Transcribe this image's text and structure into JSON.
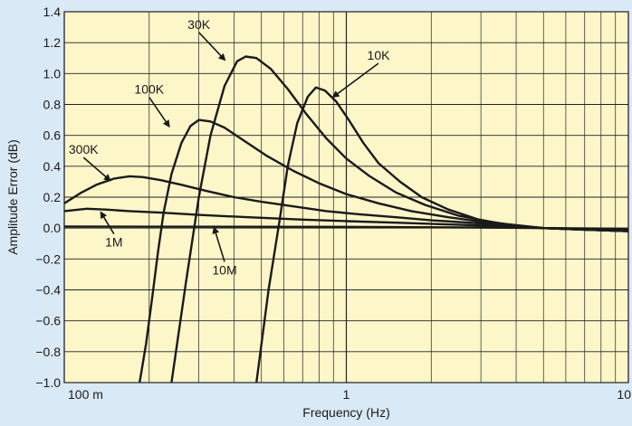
{
  "chart_data": {
    "type": "line",
    "xlabel": "Frequency (Hz)",
    "ylabel": "Amplitude Error (dB)",
    "x_scale": "log",
    "xlim": [
      0.1,
      10
    ],
    "ylim": [
      -1.0,
      1.4
    ],
    "grid": true,
    "legend": "none",
    "plot_bg": "#fdf6c9",
    "grid_color": "#222222",
    "line_color": "#1a1a1a",
    "x_ticks": [
      {
        "value": 0.1,
        "label": "100 m"
      },
      {
        "value": 1,
        "label": "1"
      },
      {
        "value": 10,
        "label": "10"
      }
    ],
    "y_ticks": [
      {
        "value": 1.4,
        "label": "1.4"
      },
      {
        "value": 1.2,
        "label": "1.2"
      },
      {
        "value": 1.0,
        "label": "1.0"
      },
      {
        "value": 0.8,
        "label": "0.8"
      },
      {
        "value": 0.6,
        "label": "0.6"
      },
      {
        "value": 0.4,
        "label": "0.4"
      },
      {
        "value": 0.2,
        "label": "0.2"
      },
      {
        "value": 0.0,
        "label": "0.0"
      },
      {
        "value": -0.2,
        "label": "−0.2"
      },
      {
        "value": -0.4,
        "label": "−0.4"
      },
      {
        "value": -0.6,
        "label": "−0.6"
      },
      {
        "value": -0.8,
        "label": "−0.8"
      },
      {
        "value": -1.0,
        "label": "−1.0"
      }
    ],
    "series": [
      {
        "name": "10K",
        "points": [
          [
            0.48,
            -1.0
          ],
          [
            0.53,
            -0.4
          ],
          [
            0.58,
            0.05
          ],
          [
            0.62,
            0.4
          ],
          [
            0.67,
            0.68
          ],
          [
            0.73,
            0.85
          ],
          [
            0.78,
            0.91
          ],
          [
            0.84,
            0.89
          ],
          [
            0.92,
            0.82
          ],
          [
            1.02,
            0.7
          ],
          [
            1.15,
            0.55
          ],
          [
            1.3,
            0.42
          ],
          [
            1.55,
            0.3
          ],
          [
            1.85,
            0.2
          ],
          [
            2.3,
            0.12
          ],
          [
            3.0,
            0.05
          ],
          [
            4.0,
            0.015
          ],
          [
            5.0,
            0.0
          ],
          [
            7.0,
            -0.01
          ],
          [
            10.0,
            -0.02
          ]
        ]
      },
      {
        "name": "30K",
        "points": [
          [
            0.24,
            -1.0
          ],
          [
            0.27,
            -0.35
          ],
          [
            0.3,
            0.2
          ],
          [
            0.33,
            0.6
          ],
          [
            0.37,
            0.92
          ],
          [
            0.41,
            1.08
          ],
          [
            0.44,
            1.11
          ],
          [
            0.48,
            1.1
          ],
          [
            0.54,
            1.03
          ],
          [
            0.62,
            0.9
          ],
          [
            0.72,
            0.74
          ],
          [
            0.85,
            0.58
          ],
          [
            1.0,
            0.45
          ],
          [
            1.2,
            0.34
          ],
          [
            1.5,
            0.23
          ],
          [
            1.9,
            0.15
          ],
          [
            2.5,
            0.08
          ],
          [
            3.5,
            0.03
          ],
          [
            5.0,
            0.0
          ],
          [
            7.0,
            -0.01
          ],
          [
            10.0,
            -0.02
          ]
        ]
      },
      {
        "name": "100K",
        "points": [
          [
            0.185,
            -1.0
          ],
          [
            0.195,
            -0.75
          ],
          [
            0.205,
            -0.45
          ],
          [
            0.215,
            -0.15
          ],
          [
            0.225,
            0.1
          ],
          [
            0.24,
            0.35
          ],
          [
            0.26,
            0.55
          ],
          [
            0.28,
            0.66
          ],
          [
            0.3,
            0.7
          ],
          [
            0.33,
            0.69
          ],
          [
            0.37,
            0.65
          ],
          [
            0.43,
            0.57
          ],
          [
            0.52,
            0.47
          ],
          [
            0.65,
            0.37
          ],
          [
            0.8,
            0.29
          ],
          [
            1.0,
            0.22
          ],
          [
            1.3,
            0.16
          ],
          [
            1.7,
            0.11
          ],
          [
            2.3,
            0.07
          ],
          [
            3.2,
            0.035
          ],
          [
            5.0,
            0.0
          ],
          [
            7.0,
            -0.01
          ],
          [
            10.0,
            -0.02
          ]
        ]
      },
      {
        "name": "300K",
        "points": [
          [
            0.1,
            0.16
          ],
          [
            0.115,
            0.23
          ],
          [
            0.13,
            0.28
          ],
          [
            0.15,
            0.32
          ],
          [
            0.17,
            0.335
          ],
          [
            0.19,
            0.33
          ],
          [
            0.22,
            0.31
          ],
          [
            0.26,
            0.28
          ],
          [
            0.32,
            0.24
          ],
          [
            0.4,
            0.2
          ],
          [
            0.5,
            0.17
          ],
          [
            0.65,
            0.14
          ],
          [
            0.85,
            0.11
          ],
          [
            1.1,
            0.09
          ],
          [
            1.5,
            0.07
          ],
          [
            2.0,
            0.05
          ],
          [
            3.0,
            0.03
          ],
          [
            4.0,
            0.01
          ],
          [
            5.0,
            0.0
          ],
          [
            7.0,
            -0.01
          ],
          [
            10.0,
            -0.02
          ]
        ]
      },
      {
        "name": "1M",
        "points": [
          [
            0.1,
            0.11
          ],
          [
            0.12,
            0.125
          ],
          [
            0.14,
            0.12
          ],
          [
            0.17,
            0.11
          ],
          [
            0.22,
            0.1
          ],
          [
            0.3,
            0.085
          ],
          [
            0.45,
            0.07
          ],
          [
            0.7,
            0.055
          ],
          [
            1.0,
            0.045
          ],
          [
            1.5,
            0.035
          ],
          [
            2.2,
            0.025
          ],
          [
            3.2,
            0.015
          ],
          [
            5.0,
            0.0
          ],
          [
            7.0,
            -0.005
          ],
          [
            10.0,
            -0.01
          ]
        ]
      },
      {
        "name": "10M",
        "points": [
          [
            0.1,
            0.01
          ],
          [
            1.0,
            0.008
          ],
          [
            3.0,
            0.004
          ],
          [
            5.0,
            0.0
          ],
          [
            10.0,
            -0.005
          ]
        ]
      }
    ],
    "labels": [
      {
        "text": "30K",
        "at": [
          0.3,
          1.29
        ],
        "arrow_to": [
          0.37,
          1.09
        ]
      },
      {
        "text": "10K",
        "at": [
          1.3,
          1.09
        ],
        "arrow_to": [
          0.9,
          0.85
        ]
      },
      {
        "text": "100K",
        "at": [
          0.2,
          0.87
        ],
        "arrow_to": [
          0.235,
          0.66
        ]
      },
      {
        "text": "300K",
        "at": [
          0.117,
          0.48
        ],
        "arrow_to": [
          0.145,
          0.31
        ]
      },
      {
        "text": "1M",
        "at": [
          0.15,
          -0.12
        ],
        "arrow_to": [
          0.135,
          0.1
        ]
      },
      {
        "text": "10M",
        "at": [
          0.37,
          -0.3
        ],
        "arrow_to": [
          0.34,
          0.0
        ]
      }
    ]
  }
}
